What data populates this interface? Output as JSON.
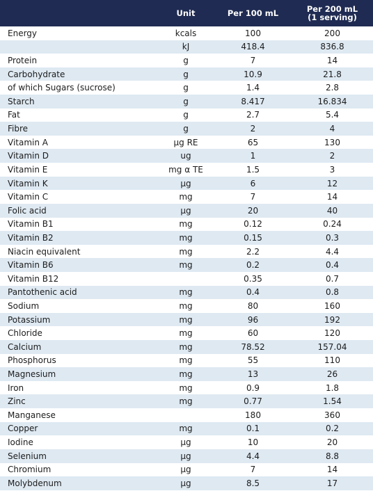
{
  "header": {
    "name": "",
    "unit": "Unit",
    "per100": "Per 100 mL",
    "per200_line1": "Per 200 mL",
    "per200_line2": "(1 serving)"
  },
  "rows": [
    {
      "name": "Energy",
      "unit": "kcals",
      "v100": "100",
      "v200": "200"
    },
    {
      "name": "",
      "unit": "kJ",
      "v100": "418.4",
      "v200": "836.8"
    },
    {
      "name": "Protein",
      "unit": "g",
      "v100": "7",
      "v200": "14"
    },
    {
      "name": "Carbohydrate",
      "unit": "g",
      "v100": "10.9",
      "v200": "21.8"
    },
    {
      "name": "of which Sugars (sucrose)",
      "unit": "g",
      "v100": "1.4",
      "v200": "2.8"
    },
    {
      "name": "Starch",
      "unit": "g",
      "v100": "8.417",
      "v200": "16.834"
    },
    {
      "name": "Fat",
      "unit": "g",
      "v100": "2.7",
      "v200": "5.4"
    },
    {
      "name": "Fibre",
      "unit": "g",
      "v100": "2",
      "v200": "4"
    },
    {
      "name": "Vitamin A",
      "unit": "µg RE",
      "v100": "65",
      "v200": "130"
    },
    {
      "name": "Vitamin D",
      "unit": "ug",
      "v100": "1",
      "v200": "2"
    },
    {
      "name": "Vitamin E",
      "unit": "mg α TE",
      "v100": "1.5",
      "v200": "3"
    },
    {
      "name": "Vitamin K",
      "unit": "µg",
      "v100": "6",
      "v200": "12"
    },
    {
      "name": "Vitamin C",
      "unit": "mg",
      "v100": "7",
      "v200": "14"
    },
    {
      "name": "Folic acid",
      "unit": "µg",
      "v100": "20",
      "v200": "40"
    },
    {
      "name": "Vitamin B1",
      "unit": "mg",
      "v100": "0.12",
      "v200": "0.24"
    },
    {
      "name": "Vitamin B2",
      "unit": "mg",
      "v100": "0.15",
      "v200": "0.3"
    },
    {
      "name": "Niacin equivalent",
      "unit": "mg",
      "v100": "2.2",
      "v200": "4.4"
    },
    {
      "name": "Vitamin B6",
      "unit": "mg",
      "v100": "0.2",
      "v200": "0.4"
    },
    {
      "name": "Vitamin B12",
      "unit": "",
      "v100": "0.35",
      "v200": "0.7"
    },
    {
      "name": "Pantothenic acid",
      "unit": "mg",
      "v100": "0.4",
      "v200": "0.8"
    },
    {
      "name": "Sodium",
      "unit": "mg",
      "v100": "80",
      "v200": "160"
    },
    {
      "name": "Potassium",
      "unit": "mg",
      "v100": "96",
      "v200": "192"
    },
    {
      "name": "Chloride",
      "unit": "mg",
      "v100": "60",
      "v200": "120"
    },
    {
      "name": "Calcium",
      "unit": "mg",
      "v100": "78.52",
      "v200": "157.04"
    },
    {
      "name": "Phosphorus",
      "unit": "mg",
      "v100": "55",
      "v200": "110"
    },
    {
      "name": "Magnesium",
      "unit": "mg",
      "v100": "13",
      "v200": "26"
    },
    {
      "name": "Iron",
      "unit": "mg",
      "v100": "0.9",
      "v200": "1.8"
    },
    {
      "name": "Zinc",
      "unit": "mg",
      "v100": "0.77",
      "v200": "1.54"
    },
    {
      "name": "Manganese",
      "unit": "",
      "v100": "180",
      "v200": "360"
    },
    {
      "name": "Copper",
      "unit": "mg",
      "v100": "0.1",
      "v200": "0.2"
    },
    {
      "name": "Iodine",
      "unit": "µg",
      "v100": "10",
      "v200": "20"
    },
    {
      "name": "Selenium",
      "unit": "µg",
      "v100": "4.4",
      "v200": "8.8"
    },
    {
      "name": "Chromium",
      "unit": "µg",
      "v100": "7",
      "v200": "14"
    },
    {
      "name": "Molybdenum",
      "unit": "µg",
      "v100": "8.5",
      "v200": "17"
    }
  ],
  "colors": {
    "header_bg": "#1f2b52",
    "header_text": "#ffffff",
    "stripe": "#dee9f2",
    "row_bg": "#ffffff"
  }
}
